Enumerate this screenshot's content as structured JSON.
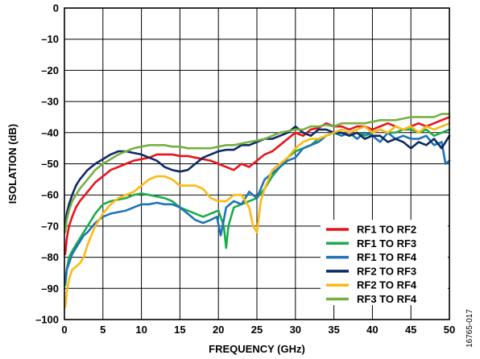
{
  "chart_data": {
    "type": "line",
    "xlabel": "FREQUENCY (GHz)",
    "ylabel": "ISOLATION (dB)",
    "xlim": [
      0,
      50
    ],
    "ylim": [
      -100,
      0
    ],
    "xticks": [
      0,
      5,
      10,
      15,
      20,
      25,
      30,
      35,
      40,
      45,
      50
    ],
    "yticks": [
      0,
      -10,
      -20,
      -30,
      -40,
      -50,
      -60,
      -70,
      -80,
      -90,
      -100
    ],
    "grid": true,
    "legend_position": "bottom-right",
    "figure_id": "16765-017",
    "series": [
      {
        "name": "RF1 TO RF2",
        "color": "#e8141b",
        "x": [
          0.1,
          0.3,
          0.6,
          1,
          1.5,
          2,
          3,
          4,
          5,
          6,
          7,
          8,
          9,
          10,
          11,
          12,
          13,
          14,
          15,
          16,
          17,
          18,
          19,
          20,
          21,
          22,
          23,
          24,
          25,
          26,
          27,
          28,
          29,
          30,
          31,
          32,
          33,
          34,
          35,
          36,
          37,
          38,
          39,
          40,
          41,
          42,
          43,
          44,
          45,
          46,
          47,
          48,
          49,
          50
        ],
        "y": [
          -79,
          -74,
          -70,
          -67,
          -64,
          -62,
          -59,
          -56,
          -54,
          -52,
          -51,
          -50,
          -49,
          -48.5,
          -48,
          -47,
          -47,
          -47,
          -47.5,
          -47.5,
          -48,
          -48.5,
          -49,
          -50,
          -51,
          -52,
          -50,
          -51,
          -49,
          -47,
          -46,
          -44,
          -42,
          -40,
          -41,
          -39,
          -38.5,
          -37,
          -38,
          -38,
          -39,
          -38,
          -38,
          -39,
          -38,
          -37,
          -38,
          -39,
          -38,
          -37,
          -38,
          -37,
          -36,
          -35
        ]
      },
      {
        "name": "RF1 TO RF3",
        "color": "#1aac4b",
        "x": [
          0.1,
          0.3,
          0.6,
          1,
          1.5,
          2,
          2.5,
          3,
          4,
          5,
          6,
          7,
          8,
          9,
          10,
          11,
          12,
          13,
          14,
          15,
          16,
          17,
          18,
          19,
          20,
          20.7,
          21,
          21.3,
          22,
          23,
          24,
          25,
          26,
          27,
          28,
          29,
          30,
          31,
          32,
          33,
          34,
          35,
          36,
          37,
          38,
          39,
          40,
          41,
          42,
          43,
          44,
          45,
          46,
          47,
          48,
          49,
          50
        ],
        "y": [
          -89,
          -84,
          -80,
          -78,
          -76,
          -74,
          -72,
          -70,
          -66,
          -63,
          -62,
          -61.5,
          -61,
          -60,
          -59.5,
          -60,
          -60.5,
          -61,
          -62,
          -64,
          -65,
          -66,
          -67,
          -66,
          -65,
          -70,
          -77,
          -70,
          -64,
          -63,
          -62,
          -61,
          -58,
          -54,
          -51,
          -48,
          -46,
          -45,
          -44,
          -42,
          -41,
          -40,
          -40,
          -41,
          -40,
          -41,
          -40,
          -39,
          -40,
          -40,
          -39,
          -39,
          -40,
          -39,
          -41,
          -40,
          -39
        ]
      },
      {
        "name": "RF1 TO RF4",
        "color": "#1f73b7",
        "x": [
          0.1,
          0.3,
          0.6,
          1,
          1.5,
          2,
          2.5,
          3,
          4,
          5,
          6,
          7,
          8,
          9,
          10,
          11,
          12,
          13,
          14,
          15,
          16,
          17,
          18,
          19,
          19.8,
          20.3,
          20.7,
          21,
          22,
          23,
          24,
          25,
          26,
          27,
          28,
          29,
          30,
          31,
          32,
          33,
          34,
          35,
          36,
          37,
          38,
          39,
          40,
          41,
          42,
          43,
          44,
          45,
          46,
          47,
          48,
          49,
          49.5,
          50
        ],
        "y": [
          -88,
          -84,
          -82,
          -79,
          -77,
          -75,
          -73,
          -72,
          -69,
          -67,
          -66,
          -65.5,
          -65,
          -64,
          -63,
          -63,
          -62.5,
          -63,
          -63,
          -64,
          -66,
          -68,
          -69,
          -68,
          -67,
          -73,
          -68,
          -64,
          -62,
          -63,
          -59,
          -61,
          -55,
          -53,
          -51,
          -49,
          -48,
          -45,
          -44,
          -43,
          -41,
          -40,
          -41,
          -40,
          -42,
          -40,
          -41,
          -43,
          -40,
          -42,
          -41,
          -42,
          -42,
          -41,
          -44,
          -43,
          -50,
          -49
        ]
      },
      {
        "name": "RF2 TO RF3",
        "color": "#0d2a62",
        "x": [
          0.1,
          0.3,
          0.6,
          1,
          1.5,
          2,
          3,
          4,
          5,
          6,
          7,
          8,
          9,
          10,
          11,
          12,
          13,
          14,
          15,
          16,
          17,
          18,
          19,
          20,
          21,
          22,
          23,
          24,
          25,
          26,
          27,
          28,
          29,
          30,
          31,
          32,
          33,
          34,
          35,
          36,
          37,
          38,
          39,
          40,
          41,
          42,
          43,
          44,
          45,
          46,
          47,
          48,
          49,
          50
        ],
        "y": [
          -70,
          -66,
          -63,
          -60,
          -57,
          -55,
          -52,
          -50,
          -48.5,
          -47,
          -46,
          -46,
          -46.5,
          -47,
          -48,
          -49,
          -51,
          -52,
          -52.5,
          -52,
          -50,
          -48,
          -47,
          -46,
          -45.5,
          -45.5,
          -44,
          -44,
          -43,
          -42,
          -42,
          -41,
          -40,
          -38,
          -40,
          -41,
          -39,
          -39,
          -40,
          -40,
          -41,
          -40,
          -42,
          -41,
          -41,
          -43,
          -42,
          -43,
          -45,
          -43,
          -44,
          -42,
          -45,
          -41
        ]
      },
      {
        "name": "RF2 TO RF4",
        "color": "#fdb913",
        "x": [
          0.1,
          0.3,
          0.6,
          1,
          1.5,
          2,
          2.5,
          3,
          4,
          5,
          6,
          7,
          8,
          9,
          10,
          11,
          12,
          13,
          14,
          15,
          16,
          17,
          18,
          19,
          20,
          21,
          22,
          23,
          24,
          24.5,
          25,
          25.5,
          26,
          27,
          28,
          29,
          30,
          31,
          32,
          33,
          34,
          35,
          36,
          37,
          38,
          39,
          40,
          41,
          42,
          43,
          44,
          45,
          46,
          47,
          48,
          49,
          50
        ],
        "y": [
          -96,
          -91,
          -87,
          -84,
          -83,
          -82,
          -80,
          -76,
          -70,
          -66,
          -63,
          -61,
          -60,
          -59,
          -57,
          -55,
          -54,
          -54,
          -55,
          -57,
          -57,
          -57,
          -58,
          -61,
          -62,
          -62,
          -60,
          -60,
          -64,
          -70,
          -72,
          -62,
          -58,
          -52,
          -50,
          -48,
          -45,
          -43,
          -42,
          -42,
          -41,
          -40,
          -39,
          -40,
          -39,
          -38,
          -40,
          -39,
          -40,
          -38,
          -39,
          -38,
          -40,
          -38,
          -39,
          -38,
          -37
        ]
      },
      {
        "name": "RF3 TO RF4",
        "color": "#76b043",
        "x": [
          0.1,
          0.3,
          0.6,
          1,
          1.5,
          2,
          3,
          4,
          5,
          6,
          7,
          8,
          9,
          10,
          11,
          12,
          13,
          14,
          15,
          16,
          17,
          18,
          19,
          20,
          21,
          22,
          23,
          24,
          25,
          26,
          27,
          28,
          29,
          30,
          31,
          32,
          33,
          34,
          35,
          36,
          37,
          38,
          39,
          40,
          41,
          42,
          43,
          44,
          45,
          46,
          47,
          48,
          49,
          50
        ],
        "y": [
          -72,
          -68,
          -65,
          -62,
          -60,
          -58,
          -55,
          -52,
          -50,
          -48.5,
          -47,
          -46,
          -45,
          -44.5,
          -44,
          -44,
          -44,
          -44.5,
          -44.5,
          -45,
          -45,
          -45,
          -45,
          -44.5,
          -44,
          -44,
          -43.5,
          -43,
          -42.5,
          -42,
          -41,
          -40,
          -39.5,
          -39,
          -39,
          -38,
          -38,
          -37.5,
          -38,
          -37,
          -37,
          -37,
          -37,
          -36.5,
          -36,
          -36,
          -36,
          -35.5,
          -35,
          -35,
          -35,
          -35,
          -34,
          -34
        ]
      }
    ]
  }
}
